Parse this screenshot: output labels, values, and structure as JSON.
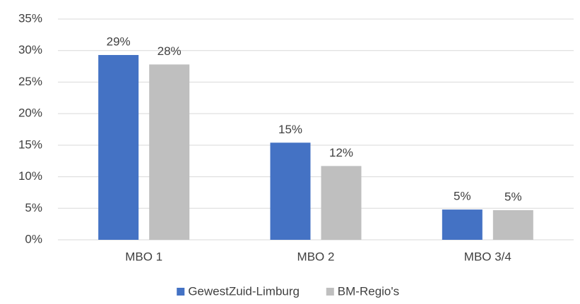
{
  "chart_data": {
    "type": "bar",
    "categories": [
      "MBO 1",
      "MBO 2",
      "MBO 3/4"
    ],
    "series": [
      {
        "name": "GewestZuid-Limburg",
        "color": "#4472c4",
        "values": [
          29.3,
          15.4,
          4.8
        ],
        "value_labels": [
          "29%",
          "15%",
          "5%"
        ]
      },
      {
        "name": "BM-Regio's",
        "color": "#bfbfbf",
        "values": [
          27.8,
          11.7,
          4.7
        ],
        "value_labels": [
          "28%",
          "12%",
          "5%"
        ]
      }
    ],
    "ylim": [
      0,
      35
    ],
    "yticks": [
      {
        "value": 0,
        "label": "0%"
      },
      {
        "value": 5,
        "label": "5%"
      },
      {
        "value": 10,
        "label": "10%"
      },
      {
        "value": 15,
        "label": "15%"
      },
      {
        "value": 20,
        "label": "20%"
      },
      {
        "value": 25,
        "label": "25%"
      },
      {
        "value": 30,
        "label": "30%"
      },
      {
        "value": 35,
        "label": "35%"
      }
    ],
    "grid": true,
    "legend": "bottom"
  }
}
